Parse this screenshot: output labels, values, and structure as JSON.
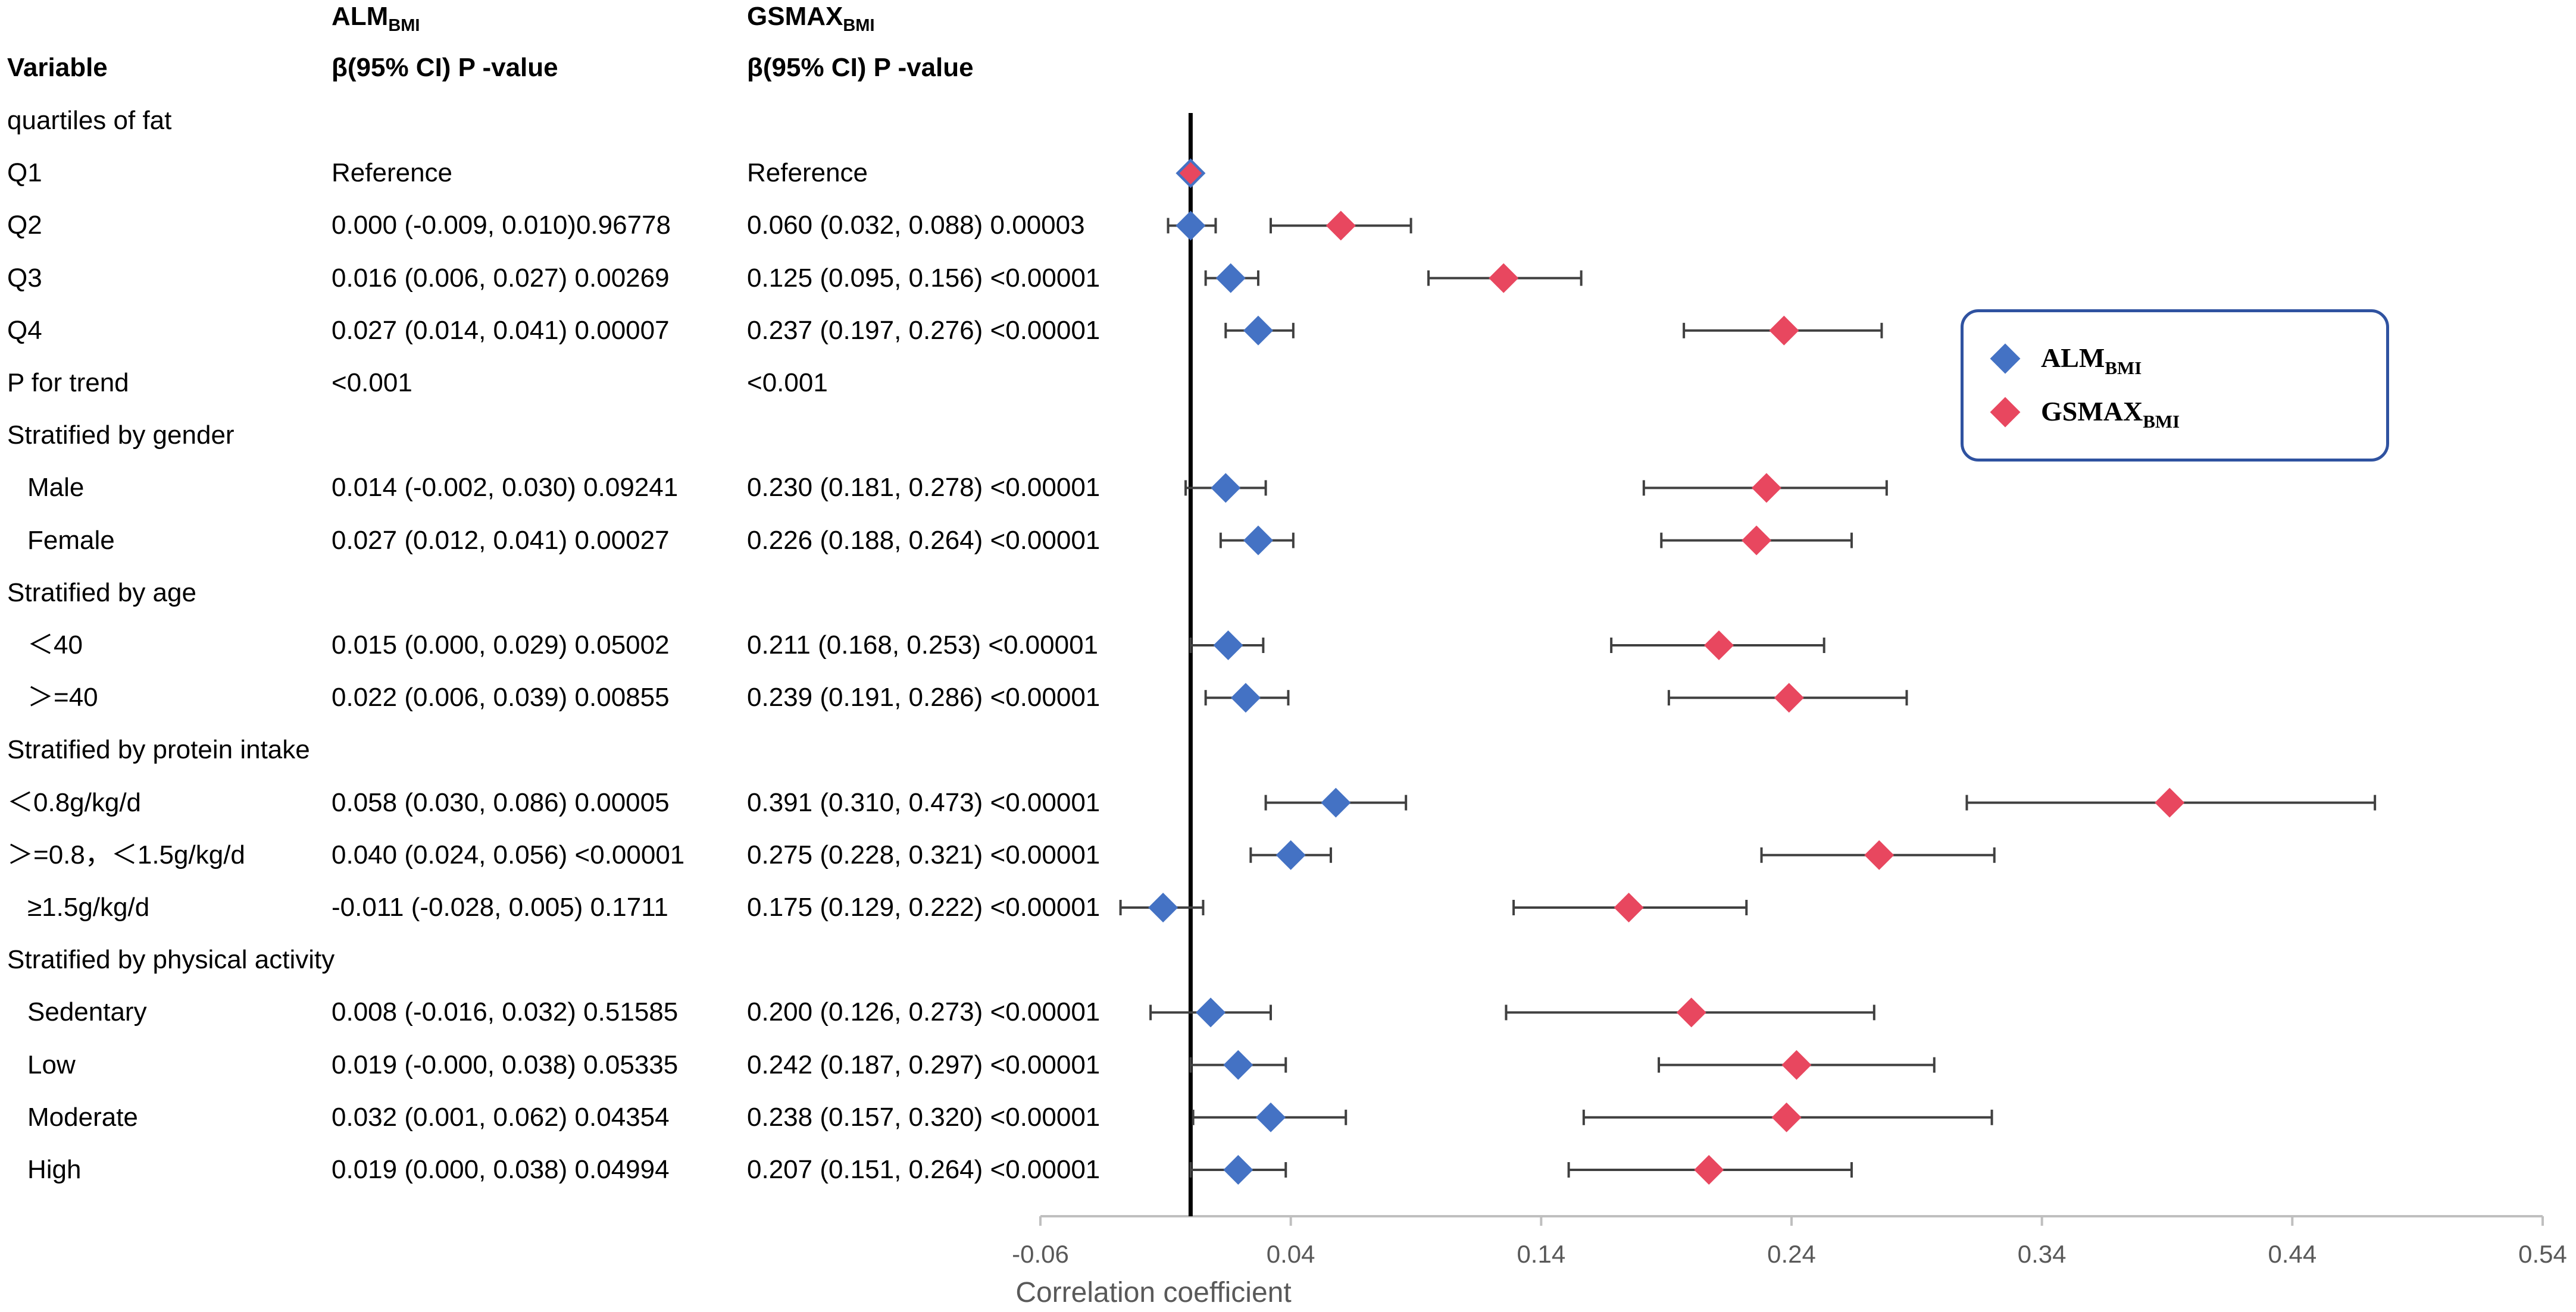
{
  "header": {
    "variable": "Variable",
    "col1_name": "ALM",
    "col1_sub": "BMI",
    "col1_stat": "β(95% CI) P -value",
    "col2_name": "GSMAX",
    "col2_sub": "BMI",
    "col2_stat": "β(95% CI) P -value"
  },
  "rows": [
    {
      "label": "quartiles of  fat",
      "kind": "group"
    },
    {
      "label": "Q1",
      "kind": "item",
      "alm_text": "Reference",
      "gsmax_text": "Reference"
    },
    {
      "label": "Q2",
      "kind": "item",
      "alm_text": "0.000 (-0.009, 0.010)0.96778",
      "gsmax_text": "0.060 (0.032, 0.088) 0.00003"
    },
    {
      "label": "Q3",
      "kind": "item",
      "alm_text": "0.016 (0.006, 0.027) 0.00269",
      "gsmax_text": "0.125 (0.095, 0.156) <0.00001"
    },
    {
      "label": "Q4",
      "kind": "item",
      "alm_text": "0.027 (0.014, 0.041) 0.00007",
      "gsmax_text": "0.237 (0.197, 0.276) <0.00001"
    },
    {
      "label": "P for trend",
      "kind": "item",
      "alm_text": "<0.001",
      "gsmax_text": "<0.001"
    },
    {
      "label": "Stratified by gender",
      "kind": "group"
    },
    {
      "label": "Male",
      "kind": "sub",
      "alm_text": "0.014 (-0.002, 0.030) 0.09241",
      "gsmax_text": "0.230 (0.181, 0.278) <0.00001"
    },
    {
      "label": "Female",
      "kind": "sub",
      "alm_text": "0.027 (0.012, 0.041) 0.00027",
      "gsmax_text": "0.226 (0.188, 0.264) <0.00001"
    },
    {
      "label": "Stratified by age",
      "kind": "group"
    },
    {
      "label": "＜40",
      "kind": "sub",
      "alm_text": "0.015 (0.000, 0.029) 0.05002",
      "gsmax_text": "0.211 (0.168, 0.253) <0.00001"
    },
    {
      "label": "＞=40",
      "kind": "sub",
      "alm_text": "0.022 (0.006, 0.039) 0.00855",
      "gsmax_text": "0.239 (0.191, 0.286) <0.00001"
    },
    {
      "label": "Stratified by protein intake",
      "kind": "group"
    },
    {
      "label": "＜0.8g/kg/d",
      "kind": "item",
      "alm_text": "0.058 (0.030, 0.086) 0.00005",
      "gsmax_text": "0.391 (0.310, 0.473) <0.00001"
    },
    {
      "label": "＞=0.8，＜1.5g/kg/d",
      "kind": "item",
      "alm_text": "0.040 (0.024, 0.056) <0.00001",
      "gsmax_text": "0.275 (0.228, 0.321) <0.00001"
    },
    {
      "label": "≥1.5g/kg/d",
      "kind": "sub",
      "alm_text": " -0.011 (-0.028, 0.005) 0.1711",
      "gsmax_text": "0.175 (0.129, 0.222) <0.00001"
    },
    {
      "label": "Stratified by physical activity",
      "kind": "group"
    },
    {
      "label": "Sedentary",
      "kind": "sub",
      "alm_text": "0.008 (-0.016, 0.032) 0.51585",
      "gsmax_text": "0.200 (0.126, 0.273) <0.00001"
    },
    {
      "label": "Low",
      "kind": "sub",
      "alm_text": "0.019 (-0.000, 0.038) 0.05335",
      "gsmax_text": "0.242 (0.187, 0.297) <0.00001"
    },
    {
      "label": "Moderate",
      "kind": "sub",
      "alm_text": "0.032 (0.001, 0.062) 0.04354",
      "gsmax_text": "0.238 (0.157, 0.320) <0.00001"
    },
    {
      "label": "High",
      "kind": "sub",
      "alm_text": "0.019 (0.000, 0.038) 0.04994",
      "gsmax_text": "0.207 (0.151, 0.264) <0.00001"
    }
  ],
  "legend": {
    "alm_name": "ALM",
    "alm_sub": "BMI",
    "gsmax_name": "GSMAX",
    "gsmax_sub": "BMI"
  },
  "colors": {
    "alm": "#4472c4",
    "gsmax": "#e8475f",
    "errorbar": "#404040",
    "axis": "#bfbfbf",
    "ref_line": "#000000"
  },
  "chart_data": {
    "type": "forest",
    "title": "",
    "xlabel": "Correlation coefficient",
    "ylabel": "",
    "xlim": [
      -0.06,
      0.54
    ],
    "xticks": [
      "-0.06",
      "0.04",
      "0.14",
      "0.24",
      "0.34",
      "0.44",
      "0.54"
    ],
    "xtick_values": [
      -0.06,
      0.04,
      0.14,
      0.24,
      0.34,
      0.44,
      0.54
    ],
    "reference_line": 0,
    "categories": [
      "quartiles of  fat",
      "Q1",
      "Q2",
      "Q3",
      "Q4",
      "P for trend",
      "Stratified by gender",
      "Male",
      "Female",
      "Stratified by age",
      "＜40",
      "＞=40",
      "Stratified by protein intake",
      "＜0.8g/kg/d",
      "＞=0.8，＜1.5g/kg/d",
      "≥1.5g/kg/d",
      "Stratified by physical activity",
      "Sedentary",
      "Low",
      "Moderate",
      "High"
    ],
    "series": [
      {
        "name": "ALM_BMI",
        "points": [
          {
            "row": 1,
            "beta": 0,
            "lo": 0,
            "hi": 0,
            "reference": true
          },
          {
            "row": 2,
            "beta": 0.0,
            "lo": -0.009,
            "hi": 0.01
          },
          {
            "row": 3,
            "beta": 0.016,
            "lo": 0.006,
            "hi": 0.027
          },
          {
            "row": 4,
            "beta": 0.027,
            "lo": 0.014,
            "hi": 0.041
          },
          {
            "row": 7,
            "beta": 0.014,
            "lo": -0.002,
            "hi": 0.03
          },
          {
            "row": 8,
            "beta": 0.027,
            "lo": 0.012,
            "hi": 0.041
          },
          {
            "row": 10,
            "beta": 0.015,
            "lo": 0.0,
            "hi": 0.029
          },
          {
            "row": 11,
            "beta": 0.022,
            "lo": 0.006,
            "hi": 0.039
          },
          {
            "row": 13,
            "beta": 0.058,
            "lo": 0.03,
            "hi": 0.086
          },
          {
            "row": 14,
            "beta": 0.04,
            "lo": 0.024,
            "hi": 0.056
          },
          {
            "row": 15,
            "beta": -0.011,
            "lo": -0.028,
            "hi": 0.005
          },
          {
            "row": 17,
            "beta": 0.008,
            "lo": -0.016,
            "hi": 0.032
          },
          {
            "row": 18,
            "beta": 0.019,
            "lo": -0.0,
            "hi": 0.038
          },
          {
            "row": 19,
            "beta": 0.032,
            "lo": 0.001,
            "hi": 0.062
          },
          {
            "row": 20,
            "beta": 0.019,
            "lo": 0.0,
            "hi": 0.038
          }
        ]
      },
      {
        "name": "GSMAX_BMI",
        "points": [
          {
            "row": 1,
            "beta": 0,
            "lo": 0,
            "hi": 0,
            "reference": true
          },
          {
            "row": 2,
            "beta": 0.06,
            "lo": 0.032,
            "hi": 0.088
          },
          {
            "row": 3,
            "beta": 0.125,
            "lo": 0.095,
            "hi": 0.156
          },
          {
            "row": 4,
            "beta": 0.237,
            "lo": 0.197,
            "hi": 0.276
          },
          {
            "row": 7,
            "beta": 0.23,
            "lo": 0.181,
            "hi": 0.278
          },
          {
            "row": 8,
            "beta": 0.226,
            "lo": 0.188,
            "hi": 0.264
          },
          {
            "row": 10,
            "beta": 0.211,
            "lo": 0.168,
            "hi": 0.253
          },
          {
            "row": 11,
            "beta": 0.239,
            "lo": 0.191,
            "hi": 0.286
          },
          {
            "row": 13,
            "beta": 0.391,
            "lo": 0.31,
            "hi": 0.473
          },
          {
            "row": 14,
            "beta": 0.275,
            "lo": 0.228,
            "hi": 0.321
          },
          {
            "row": 15,
            "beta": 0.175,
            "lo": 0.129,
            "hi": 0.222
          },
          {
            "row": 17,
            "beta": 0.2,
            "lo": 0.126,
            "hi": 0.273
          },
          {
            "row": 18,
            "beta": 0.242,
            "lo": 0.187,
            "hi": 0.297
          },
          {
            "row": 19,
            "beta": 0.238,
            "lo": 0.157,
            "hi": 0.32
          },
          {
            "row": 20,
            "beta": 0.207,
            "lo": 0.151,
            "hi": 0.264
          }
        ]
      }
    ]
  }
}
